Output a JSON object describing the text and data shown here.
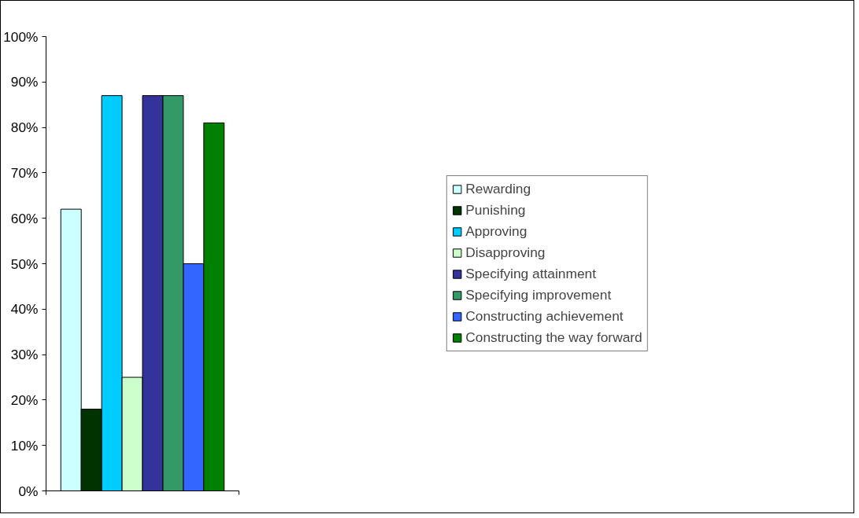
{
  "chart_data": {
    "type": "bar",
    "categories": [
      null
    ],
    "series": [
      {
        "name": "Rewarding",
        "color": "#ccffff",
        "values": [
          62
        ]
      },
      {
        "name": "Punishing",
        "color": "#003300",
        "values": [
          18
        ]
      },
      {
        "name": "Approving",
        "color": "#00ccff",
        "values": [
          87
        ]
      },
      {
        "name": "Disapproving",
        "color": "#ccffcc",
        "values": [
          25
        ]
      },
      {
        "name": "Specifying attainment",
        "color": "#333399",
        "values": [
          87
        ]
      },
      {
        "name": "Specifying improvement",
        "color": "#339966",
        "values": [
          87
        ]
      },
      {
        "name": "Constructing achievement",
        "color": "#3366ff",
        "values": [
          50
        ]
      },
      {
        "name": "Constructing the way forward",
        "color": "#008000",
        "values": [
          81
        ]
      }
    ],
    "ylim": [
      0,
      100
    ],
    "yticks": [
      {
        "value": 0,
        "label": "0%"
      },
      {
        "value": 10,
        "label": "10%"
      },
      {
        "value": 20,
        "label": "20%"
      },
      {
        "value": 30,
        "label": "30%"
      },
      {
        "value": 40,
        "label": "40%"
      },
      {
        "value": 50,
        "label": "50%"
      },
      {
        "value": 60,
        "label": "60%"
      },
      {
        "value": 70,
        "label": "70%"
      },
      {
        "value": 80,
        "label": "80%"
      },
      {
        "value": 90,
        "label": "90%"
      },
      {
        "value": 100,
        "label": "100%"
      }
    ],
    "legend": "right",
    "grid": false
  }
}
